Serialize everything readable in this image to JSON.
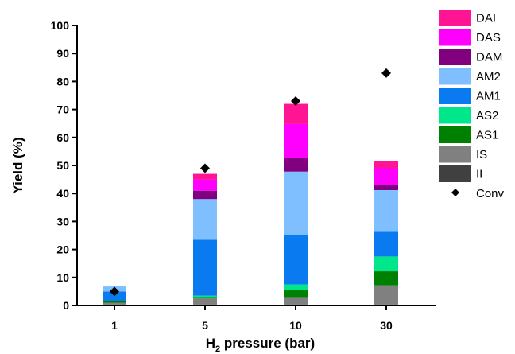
{
  "chart_data": {
    "type": "bar",
    "stacked": true,
    "categories": [
      "1",
      "5",
      "10",
      "30"
    ],
    "xlabel": {
      "main": "H",
      "sub": "2",
      "rest": " pressure (bar)"
    },
    "ylabel": "Yield (%)",
    "ylim": [
      0,
      100
    ],
    "yticks": [
      0,
      10,
      20,
      30,
      40,
      50,
      60,
      70,
      80,
      90,
      100
    ],
    "legend_position": "right",
    "series": [
      {
        "name": "II",
        "color": "#404040",
        "values": [
          0.3,
          0.3,
          0.3,
          0.3
        ]
      },
      {
        "name": "IS",
        "color": "#808080",
        "values": [
          0.7,
          2.2,
          2.7,
          6.9
        ]
      },
      {
        "name": "AS1",
        "color": "#008000",
        "values": [
          0.5,
          0.5,
          2.5,
          5.0
        ]
      },
      {
        "name": "AS2",
        "color": "#00e68a",
        "values": [
          0.0,
          0.5,
          2.0,
          5.3
        ]
      },
      {
        "name": "AM1",
        "color": "#0a7af0",
        "values": [
          3.5,
          20.0,
          17.5,
          8.8
        ]
      },
      {
        "name": "AM2",
        "color": "#80bfff",
        "values": [
          1.8,
          14.5,
          22.8,
          14.9
        ]
      },
      {
        "name": "DAM",
        "color": "#800080",
        "values": [
          0.0,
          3.0,
          5.0,
          1.8
        ]
      },
      {
        "name": "DAS",
        "color": "#ff00ff",
        "values": [
          0.0,
          4.0,
          12.0,
          6.0
        ]
      },
      {
        "name": "DAI",
        "color": "#ff1493",
        "values": [
          0.0,
          2.0,
          7.2,
          2.5
        ]
      }
    ],
    "markers": {
      "name": "Conv",
      "symbol": "diamond",
      "color": "#000000",
      "values": [
        5,
        49,
        73,
        83
      ]
    },
    "legend_order": [
      "DAI",
      "DAS",
      "DAM",
      "AM2",
      "AM1",
      "AS2",
      "AS1",
      "IS",
      "II",
      "Conv"
    ]
  }
}
